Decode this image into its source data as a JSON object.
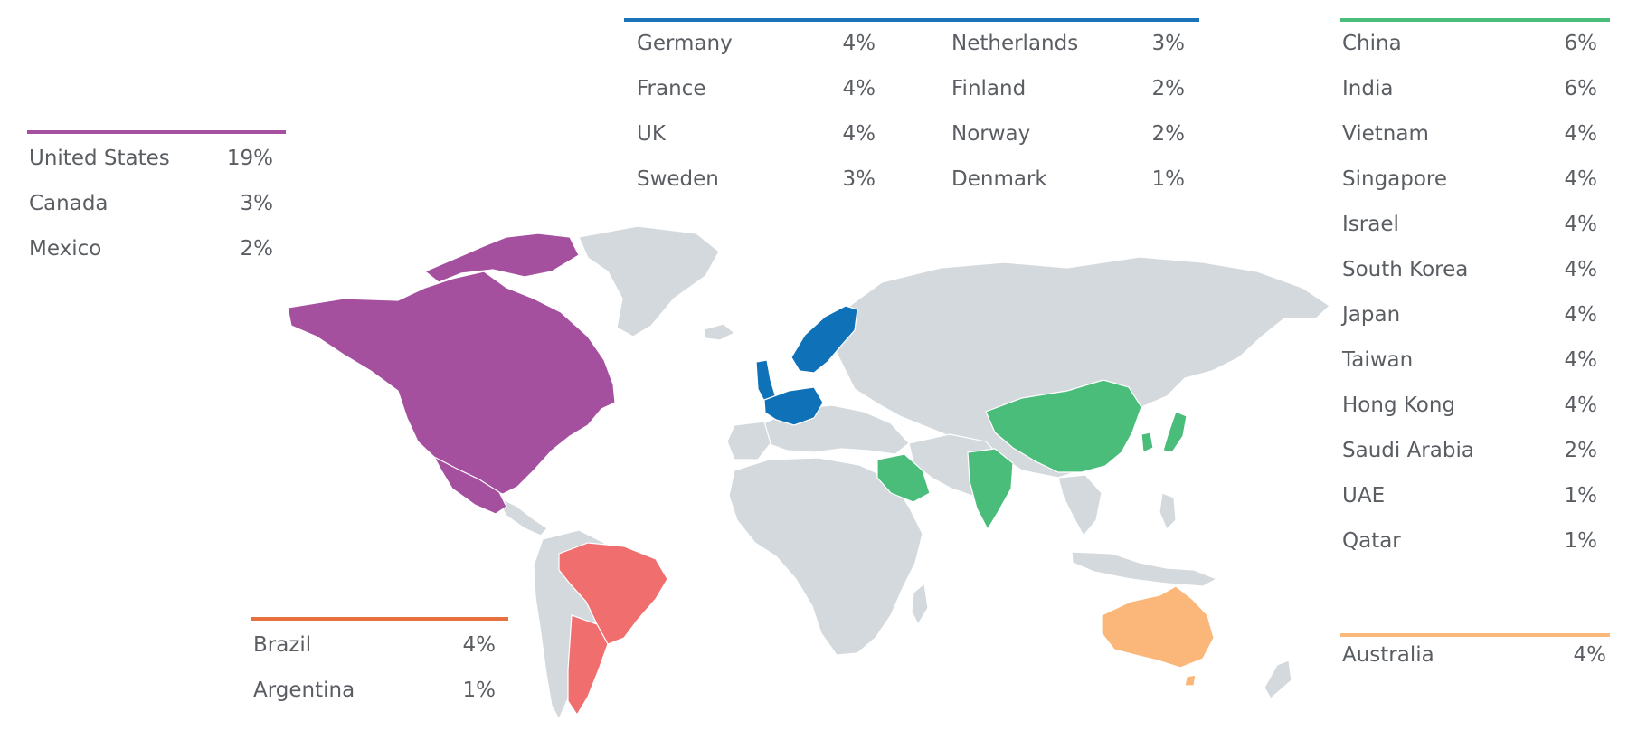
{
  "groups": [
    {
      "id": "north-america",
      "color": "#a4509f",
      "countries": [
        {
          "name": "United States",
          "pct": "19%"
        },
        {
          "name": "Canada",
          "pct": "3%"
        },
        {
          "name": "Mexico",
          "pct": "2%"
        }
      ]
    },
    {
      "id": "europe",
      "color": "#1a73b8",
      "columns": [
        [
          {
            "name": "Germany",
            "pct": "4%"
          },
          {
            "name": "France",
            "pct": "4%"
          },
          {
            "name": "UK",
            "pct": "4%"
          },
          {
            "name": "Sweden",
            "pct": "3%"
          }
        ],
        [
          {
            "name": "Netherlands",
            "pct": "3%"
          },
          {
            "name": "Finland",
            "pct": "2%"
          },
          {
            "name": "Norway",
            "pct": "2%"
          },
          {
            "name": "Denmark",
            "pct": "1%"
          }
        ]
      ]
    },
    {
      "id": "asia-middle-east",
      "color": "#4bbd7b",
      "countries": [
        {
          "name": "China",
          "pct": "6%"
        },
        {
          "name": "India",
          "pct": "6%"
        },
        {
          "name": "Vietnam",
          "pct": "4%"
        },
        {
          "name": "Singapore",
          "pct": "4%"
        },
        {
          "name": "Israel",
          "pct": "4%"
        },
        {
          "name": "South Korea",
          "pct": "4%"
        },
        {
          "name": "Japan",
          "pct": "4%"
        },
        {
          "name": "Taiwan",
          "pct": "4%"
        },
        {
          "name": "Hong Kong",
          "pct": "4%"
        },
        {
          "name": "Saudi Arabia",
          "pct": "2%"
        },
        {
          "name": "UAE",
          "pct": "1%"
        },
        {
          "name": "Qatar",
          "pct": "1%"
        }
      ]
    },
    {
      "id": "south-america",
      "color": "#e8703e",
      "countries": [
        {
          "name": "Brazil",
          "pct": "4%"
        },
        {
          "name": "Argentina",
          "pct": "1%"
        }
      ]
    },
    {
      "id": "oceania",
      "color": "#f9b97a",
      "countries": [
        {
          "name": "Australia",
          "pct": "4%"
        }
      ]
    }
  ],
  "map_colors": {
    "land": "#d3d9dd",
    "north_america": "#a4509f",
    "europe": "#0f72b8",
    "asia": "#4bbd7b",
    "south_america": "#f16e6e",
    "oceania": "#fbb67a"
  }
}
